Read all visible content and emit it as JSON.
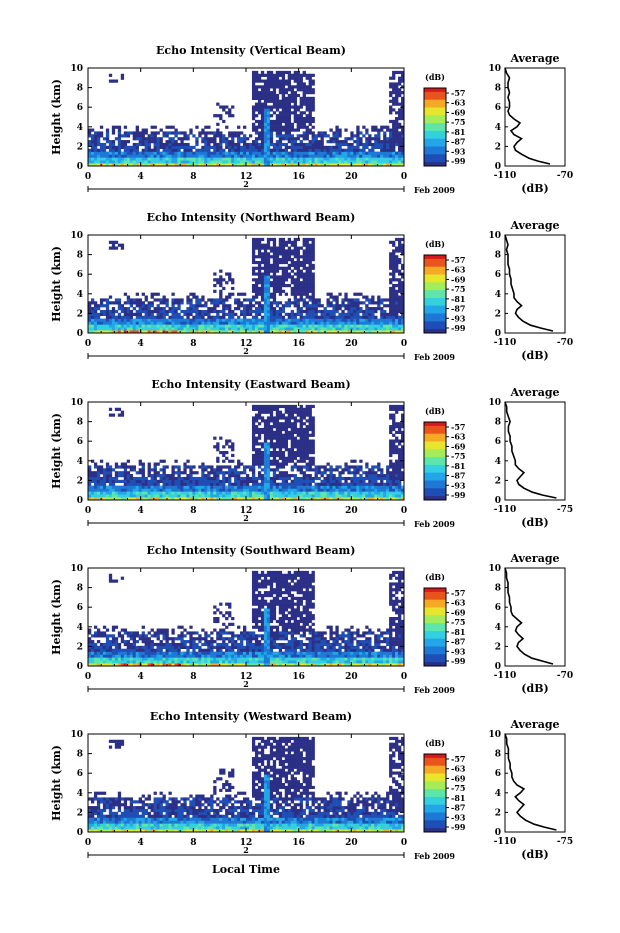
{
  "chart_data": [
    {
      "type": "heatmap",
      "title": "Echo Intensity (Vertical Beam)",
      "ylabel": "Height (km)",
      "xticks": [
        "0",
        "4",
        "8",
        "12",
        "16",
        "20",
        "0"
      ],
      "yticks": [
        "0",
        "2",
        "4",
        "6",
        "8",
        "10"
      ],
      "date_mark": "2",
      "date_label": "Feb 2009",
      "colorbar": {
        "unit": "(dB)",
        "labels": [
          "-57",
          "-63",
          "-69",
          "-75",
          "-81",
          "-87",
          "-93",
          "-99"
        ]
      },
      "average": {
        "title": "Average",
        "xlabel": "(dB)",
        "xticks": [
          "-110",
          "-70"
        ],
        "yticks": [
          "0",
          "2",
          "4",
          "6",
          "8",
          "10"
        ],
        "profile": [
          [
            -80,
            0.2
          ],
          [
            -88,
            0.5
          ],
          [
            -94,
            0.8
          ],
          [
            -99,
            1.2
          ],
          [
            -103,
            1.6
          ],
          [
            -104,
            2.0
          ],
          [
            -102,
            2.4
          ],
          [
            -99,
            2.8
          ],
          [
            -104,
            3.2
          ],
          [
            -106,
            3.6
          ],
          [
            -102,
            4.0
          ],
          [
            -100,
            4.4
          ],
          [
            -104,
            4.8
          ],
          [
            -107,
            5.2
          ],
          [
            -108,
            5.6
          ],
          [
            -107,
            6.0
          ],
          [
            -107,
            6.5
          ],
          [
            -108,
            7.0
          ],
          [
            -107,
            7.5
          ],
          [
            -108,
            8.0
          ],
          [
            -108,
            8.5
          ],
          [
            -107,
            9.0
          ],
          [
            -109,
            9.5
          ],
          [
            -110,
            10.0
          ]
        ]
      }
    },
    {
      "type": "heatmap",
      "title": "Echo Intensity (Northward Beam)",
      "ylabel": "Height (km)",
      "xticks": [
        "0",
        "4",
        "8",
        "12",
        "16",
        "20",
        "0"
      ],
      "yticks": [
        "0",
        "2",
        "4",
        "6",
        "8",
        "10"
      ],
      "date_mark": "2",
      "date_label": "Feb 2009",
      "colorbar": {
        "unit": "(dB)",
        "labels": [
          "-57",
          "-63",
          "-69",
          "-75",
          "-81",
          "-87",
          "-93",
          "-99"
        ]
      },
      "average": {
        "title": "Average",
        "xlabel": "(dB)",
        "xticks": [
          "-110",
          "-70"
        ],
        "yticks": [
          "0",
          "2",
          "4",
          "6",
          "8",
          "10"
        ],
        "profile": [
          [
            -78,
            0.2
          ],
          [
            -86,
            0.5
          ],
          [
            -93,
            0.8
          ],
          [
            -98,
            1.2
          ],
          [
            -101,
            1.6
          ],
          [
            -103,
            2.0
          ],
          [
            -102,
            2.4
          ],
          [
            -99,
            2.8
          ],
          [
            -102,
            3.2
          ],
          [
            -104,
            3.6
          ],
          [
            -104,
            4.0
          ],
          [
            -105,
            4.5
          ],
          [
            -106,
            5.0
          ],
          [
            -106,
            5.5
          ],
          [
            -107,
            6.0
          ],
          [
            -107,
            6.5
          ],
          [
            -108,
            7.0
          ],
          [
            -108,
            7.5
          ],
          [
            -108,
            8.0
          ],
          [
            -109,
            8.5
          ],
          [
            -108,
            9.0
          ],
          [
            -109,
            9.5
          ],
          [
            -110,
            10.0
          ]
        ]
      }
    },
    {
      "type": "heatmap",
      "title": "Echo Intensity (Eastward Beam)",
      "ylabel": "Height (km)",
      "xticks": [
        "0",
        "4",
        "8",
        "12",
        "16",
        "20",
        "0"
      ],
      "yticks": [
        "0",
        "2",
        "4",
        "6",
        "8",
        "10"
      ],
      "date_mark": "2",
      "date_label": "Feb 2009",
      "colorbar": {
        "unit": "(dB)",
        "labels": [
          "-57",
          "-63",
          "-69",
          "-75",
          "-81",
          "-87",
          "-93",
          "-99"
        ]
      },
      "average": {
        "title": "Average",
        "xlabel": "(dB)",
        "xticks": [
          "-110",
          "-75"
        ],
        "yticks": [
          "0",
          "2",
          "4",
          "6",
          "8",
          "10"
        ],
        "profile": [
          [
            -80,
            0.2
          ],
          [
            -88,
            0.5
          ],
          [
            -94,
            0.8
          ],
          [
            -99,
            1.2
          ],
          [
            -102,
            1.6
          ],
          [
            -103,
            2.0
          ],
          [
            -101,
            2.4
          ],
          [
            -99,
            2.8
          ],
          [
            -102,
            3.2
          ],
          [
            -104,
            3.6
          ],
          [
            -104,
            4.0
          ],
          [
            -105,
            4.5
          ],
          [
            -106,
            5.0
          ],
          [
            -106,
            5.5
          ],
          [
            -107,
            6.0
          ],
          [
            -107,
            6.5
          ],
          [
            -108,
            7.0
          ],
          [
            -108,
            7.5
          ],
          [
            -107,
            8.0
          ],
          [
            -108,
            8.5
          ],
          [
            -109,
            9.0
          ],
          [
            -109,
            9.5
          ],
          [
            -110,
            10.0
          ]
        ]
      }
    },
    {
      "type": "heatmap",
      "title": "Echo Intensity (Southward Beam)",
      "ylabel": "Height (km)",
      "xticks": [
        "0",
        "4",
        "8",
        "12",
        "16",
        "20",
        "0"
      ],
      "yticks": [
        "0",
        "2",
        "4",
        "6",
        "8",
        "10"
      ],
      "date_mark": "2",
      "date_label": "Feb 2009",
      "colorbar": {
        "unit": "(dB)",
        "labels": [
          "-57",
          "-63",
          "-69",
          "-75",
          "-81",
          "-87",
          "-93",
          "-99"
        ]
      },
      "average": {
        "title": "Average",
        "xlabel": "(dB)",
        "xticks": [
          "-110",
          "-70"
        ],
        "yticks": [
          "0",
          "2",
          "4",
          "6",
          "8",
          "10"
        ],
        "profile": [
          [
            -78,
            0.2
          ],
          [
            -85,
            0.5
          ],
          [
            -92,
            0.8
          ],
          [
            -97,
            1.2
          ],
          [
            -100,
            1.6
          ],
          [
            -102,
            2.0
          ],
          [
            -101,
            2.4
          ],
          [
            -98,
            2.8
          ],
          [
            -101,
            3.2
          ],
          [
            -103,
            3.6
          ],
          [
            -102,
            4.0
          ],
          [
            -99,
            4.4
          ],
          [
            -102,
            4.8
          ],
          [
            -105,
            5.2
          ],
          [
            -106,
            5.6
          ],
          [
            -106,
            6.0
          ],
          [
            -107,
            6.5
          ],
          [
            -107,
            7.0
          ],
          [
            -108,
            7.5
          ],
          [
            -108,
            8.0
          ],
          [
            -108,
            8.5
          ],
          [
            -109,
            9.0
          ],
          [
            -109,
            9.5
          ],
          [
            -110,
            10.0
          ]
        ]
      }
    },
    {
      "type": "heatmap",
      "title": "Echo Intensity (Westward Beam)",
      "ylabel": "Height (km)",
      "xlabel": "Local Time",
      "xticks": [
        "0",
        "4",
        "8",
        "12",
        "16",
        "20",
        "0"
      ],
      "yticks": [
        "0",
        "2",
        "4",
        "6",
        "8",
        "10"
      ],
      "date_mark": "2",
      "date_label": "Feb 2009",
      "colorbar": {
        "unit": "(dB)",
        "labels": [
          "-57",
          "-63",
          "-69",
          "-75",
          "-81",
          "-87",
          "-93",
          "-99"
        ]
      },
      "average": {
        "title": "Average",
        "xlabel": "(dB)",
        "xticks": [
          "-110",
          "-75"
        ],
        "yticks": [
          "0",
          "2",
          "4",
          "6",
          "8",
          "10"
        ],
        "profile": [
          [
            -80,
            0.2
          ],
          [
            -87,
            0.5
          ],
          [
            -93,
            0.8
          ],
          [
            -98,
            1.2
          ],
          [
            -101,
            1.6
          ],
          [
            -103,
            2.0
          ],
          [
            -101,
            2.4
          ],
          [
            -99,
            2.8
          ],
          [
            -102,
            3.2
          ],
          [
            -104,
            3.6
          ],
          [
            -101,
            4.0
          ],
          [
            -99,
            4.4
          ],
          [
            -103,
            4.8
          ],
          [
            -105,
            5.2
          ],
          [
            -106,
            5.6
          ],
          [
            -106,
            6.0
          ],
          [
            -107,
            6.5
          ],
          [
            -107,
            7.0
          ],
          [
            -108,
            7.5
          ],
          [
            -108,
            8.0
          ],
          [
            -108,
            8.5
          ],
          [
            -109,
            9.0
          ],
          [
            -109,
            9.5
          ],
          [
            -110,
            10.0
          ]
        ]
      }
    }
  ],
  "colors": {
    "colormap": [
      "#2b2f86",
      "#1f4fb5",
      "#1e78d6",
      "#23a6e8",
      "#34cfe0",
      "#5ee6a8",
      "#a4ec58",
      "#e7e62c",
      "#f5a924",
      "#e9541d",
      "#d7191c"
    ],
    "axis": "#000000"
  }
}
